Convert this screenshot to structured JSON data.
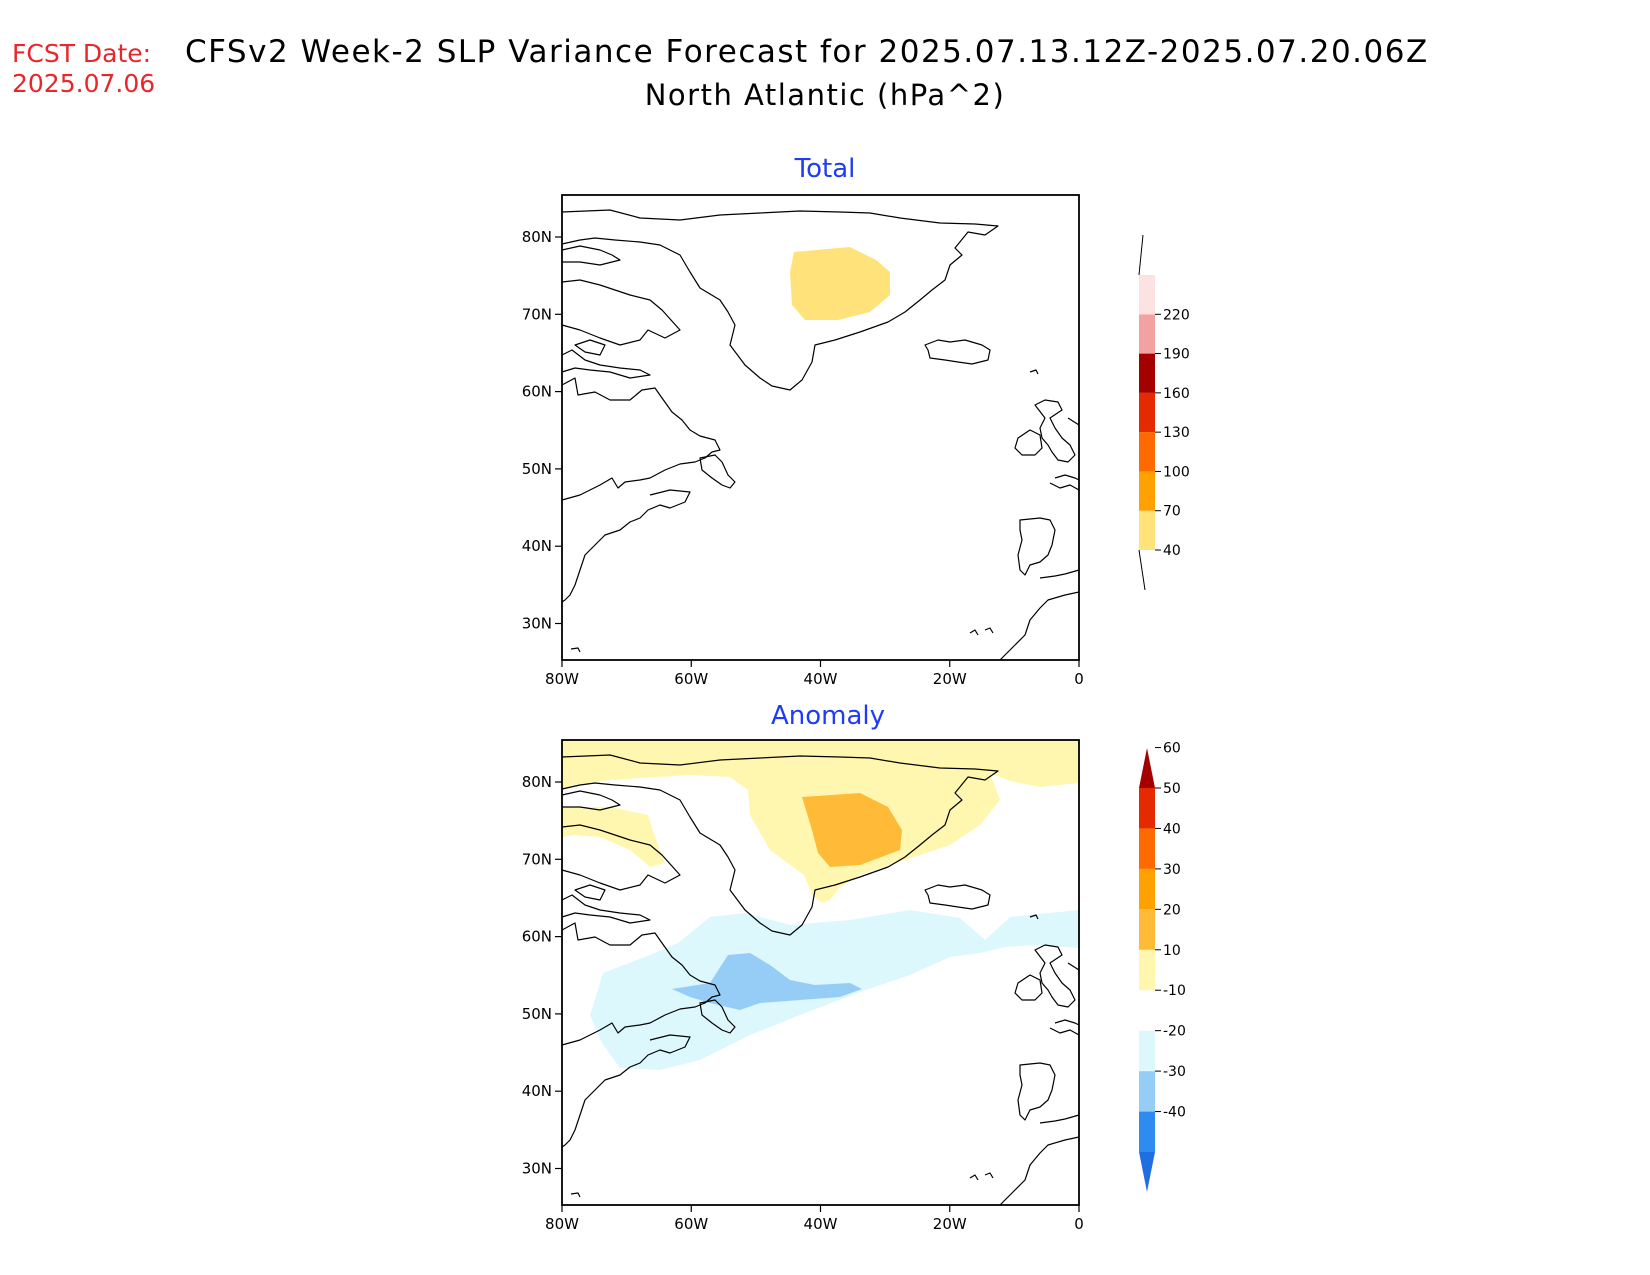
{
  "header": {
    "fcst_label": "FCST Date:",
    "fcst_date": "2025.07.06",
    "title_line1": "CFSv2 Week-2 SLP Variance Forecast for 2025.07.13.12Z-2025.07.20.06Z",
    "title_line2": "North Atlantic (hPa^2)"
  },
  "map": {
    "lat_ticks": [
      "80N",
      "70N",
      "60N",
      "50N",
      "40N",
      "30N"
    ],
    "lon_ticks": [
      "80W",
      "60W",
      "40W",
      "20W",
      "0"
    ]
  },
  "panels": [
    {
      "title": "Total",
      "colorbar": {
        "levels": [
          "40",
          "70",
          "100",
          "130",
          "160",
          "190",
          "220"
        ],
        "colors": [
          "#ffe27a",
          "#ffa100",
          "#ff6a00",
          "#e62a00",
          "#a50000",
          "#f4a1a1",
          "#fde2e2"
        ]
      }
    },
    {
      "title": "Anomaly",
      "colorbar": {
        "levels": [
          "-40",
          "-30",
          "-20",
          "-10",
          "10",
          "20",
          "30",
          "40",
          "50",
          "60"
        ],
        "colors": [
          "#1f6fe0",
          "#2e8cf0",
          "#96cdf7",
          "#dcf8fd",
          "#ffffff",
          "#fff7b0",
          "#ffbb38",
          "#ffa100",
          "#ff6a00",
          "#e62a00",
          "#a50000"
        ]
      }
    }
  ]
}
